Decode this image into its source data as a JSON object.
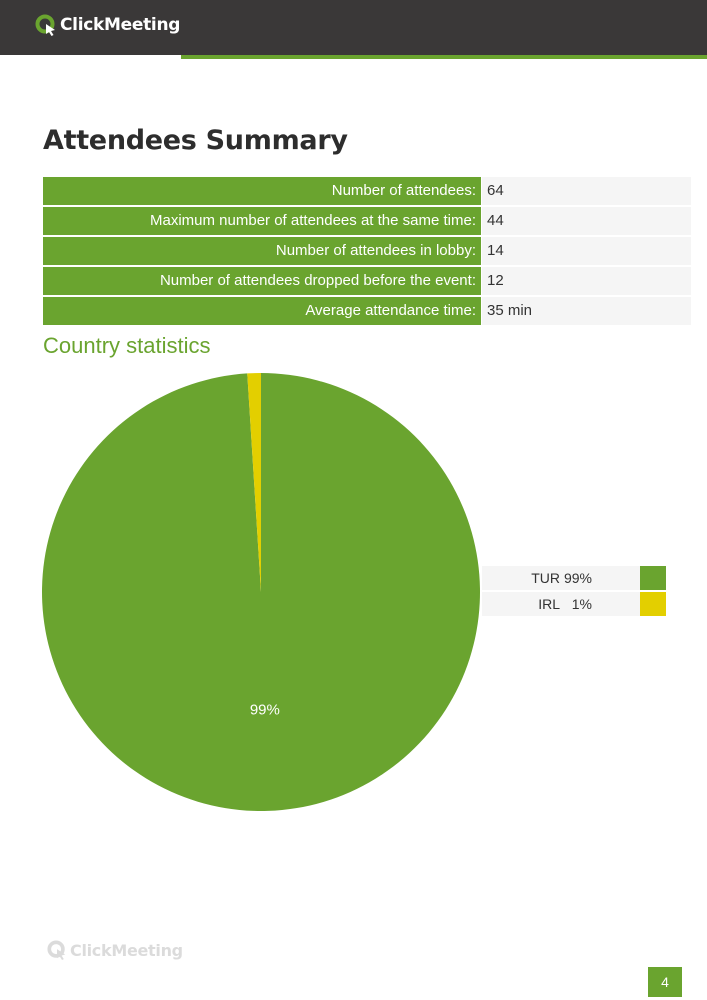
{
  "header": {
    "logo_text": "ClickMeeting"
  },
  "heading": "Attendees Summary",
  "summary": [
    {
      "label": "Number of attendees:",
      "value": "64"
    },
    {
      "label": "Maximum number of attendees at the same time:",
      "value": "44"
    },
    {
      "label": "Number of attendees in lobby:",
      "value": "14"
    },
    {
      "label": "Number of attendees dropped before the event:",
      "value": "12"
    },
    {
      "label": "Average attendance time:",
      "value": "35 min"
    }
  ],
  "section_title": "Country statistics",
  "chart_data": {
    "type": "pie",
    "categories": [
      "TUR",
      "IRL"
    ],
    "values": [
      99,
      1
    ],
    "value_labels": [
      "99%",
      "1%"
    ],
    "slice_labels": [
      "99%",
      ""
    ],
    "colors": [
      "#6aa42f",
      "#e3cf00"
    ],
    "legend_position": "right"
  },
  "footer": {
    "logo_text": "ClickMeeting",
    "page_number": "4"
  }
}
